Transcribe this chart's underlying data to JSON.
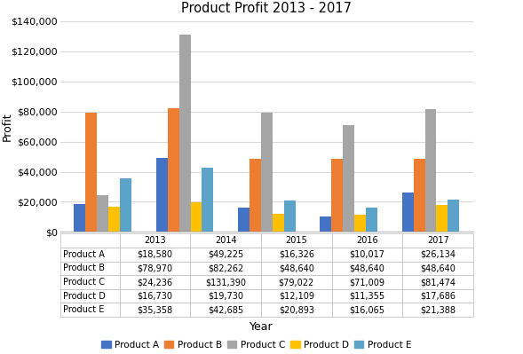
{
  "title": "Product Profit 2013 - 2017",
  "xlabel": "Year",
  "ylabel": "Profit",
  "years": [
    2013,
    2014,
    2015,
    2016,
    2017
  ],
  "products": [
    "Product A",
    "Product B",
    "Product C",
    "Product D",
    "Product E"
  ],
  "colors": [
    "#4472C4",
    "#ED7D31",
    "#A5A5A5",
    "#FFC000",
    "#5BA3C9"
  ],
  "data": {
    "Product A": [
      18580,
      49225,
      16326,
      10017,
      26134
    ],
    "Product B": [
      78970,
      82262,
      48640,
      48640,
      48640
    ],
    "Product C": [
      24236,
      131390,
      79022,
      71009,
      81474
    ],
    "Product D": [
      16730,
      19730,
      12109,
      11355,
      17686
    ],
    "Product E": [
      35358,
      42685,
      20893,
      16065,
      21388
    ]
  },
  "ylim": [
    0,
    140000
  ],
  "yticks": [
    0,
    20000,
    40000,
    60000,
    80000,
    100000,
    120000,
    140000
  ],
  "table_data": {
    "Product A": [
      "$18,580",
      "$49,225",
      "$16,326",
      "$10,017",
      "$26,134"
    ],
    "Product B": [
      "$78,970",
      "$82,262",
      "$48,640",
      "$48,640",
      "$48,640"
    ],
    "Product C": [
      "$24,236",
      "$131,390",
      "$79,022",
      "$71,009",
      "$81,474"
    ],
    "Product D": [
      "$16,730",
      "$19,730",
      "$12,109",
      "$11,355",
      "$17,686"
    ],
    "Product E": [
      "$35,358",
      "$42,685",
      "$20,893",
      "$16,065",
      "$21,388"
    ]
  },
  "bg_color": "#FFFFFF",
  "grid_color": "#D9D9D9"
}
